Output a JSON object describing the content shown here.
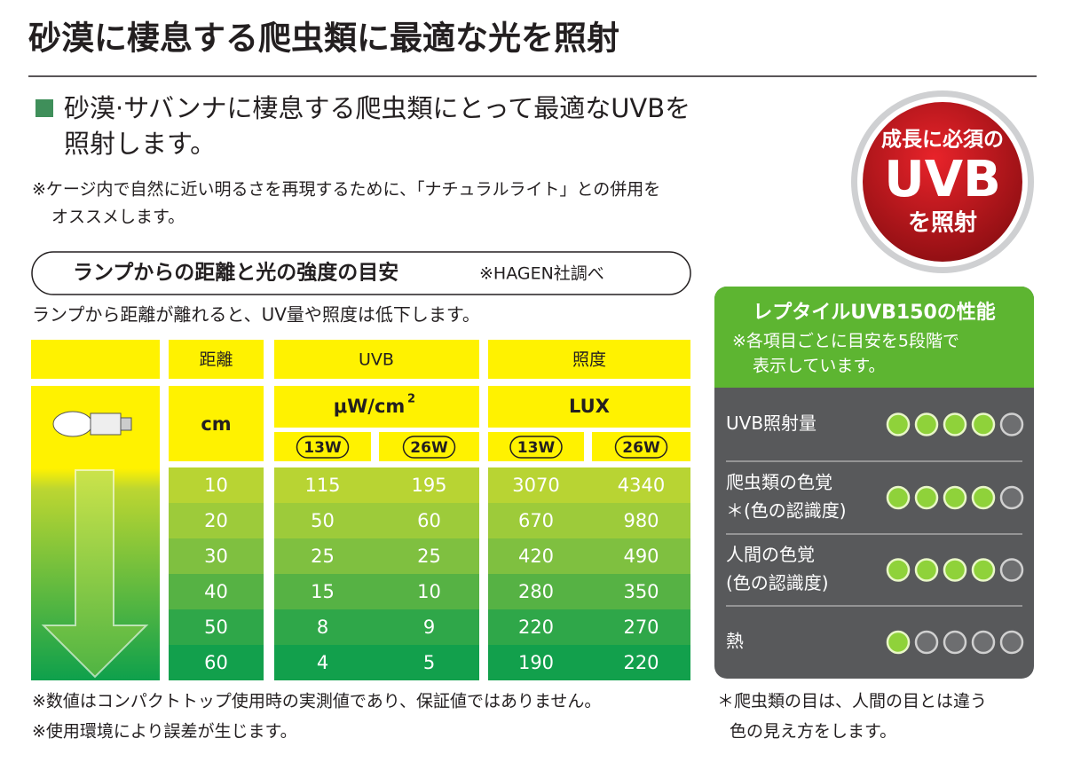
{
  "title": "砂漠に棲息する爬虫類に最適な光を照射",
  "lead": {
    "lines": [
      "砂漠·サバンナに棲息する爬虫類にとって最適なUVBを",
      "照射します。"
    ],
    "note_lines": [
      "※ケージ内で自然に近い明るさを再現するために、「ナチュラルライト」との併用を",
      "オススメします。"
    ]
  },
  "badge": {
    "top": "成長に必須の",
    "main": "UVB",
    "bottom": "を照射"
  },
  "section": {
    "heading": "ランプからの距離と光の強度の目安",
    "source": "※HAGEN社調べ",
    "intro": "ランプから距離が離れると、UV量や照度は低下します。"
  },
  "table": {
    "headers": [
      "距離",
      "UVB",
      "照度"
    ],
    "units": [
      "cm",
      "μW/cm",
      "2",
      "LUX"
    ],
    "watts": [
      "13W",
      "26W",
      "13W",
      "26W"
    ],
    "rows": [
      [
        "10",
        "115",
        "195",
        "3070",
        "4340"
      ],
      [
        "20",
        "50",
        "60",
        "670",
        "980"
      ],
      [
        "30",
        "25",
        "25",
        "420",
        "490"
      ],
      [
        "40",
        "15",
        "10",
        "280",
        "350"
      ],
      [
        "50",
        "8",
        "9",
        "220",
        "270"
      ],
      [
        "60",
        "4",
        "5",
        "190",
        "220"
      ]
    ]
  },
  "footnotes": [
    "※数値はコンパクトトップ使用時の実測値であり、保証値ではありません。",
    "※使用環境により誤差が生じます。"
  ],
  "performance": {
    "title": "レプタイルUVB150の性能",
    "subtitle_lines": [
      "※各項目ごとに目安を5段階で",
      "表示しています。"
    ],
    "max": 5,
    "items": [
      {
        "label_lines": [
          "UVB照射量"
        ],
        "rating": 4
      },
      {
        "label_lines": [
          "爬虫類の色覚",
          "＊(色の認識度)"
        ],
        "rating": 4
      },
      {
        "label_lines": [
          "人間の色覚",
          "(色の認識度)"
        ],
        "rating": 4
      },
      {
        "label_lines": [
          "熱"
        ],
        "rating": 1
      }
    ],
    "note_lines": [
      "＊爬虫類の目は、人間の目とは違う",
      "色の見え方をします。"
    ]
  }
}
